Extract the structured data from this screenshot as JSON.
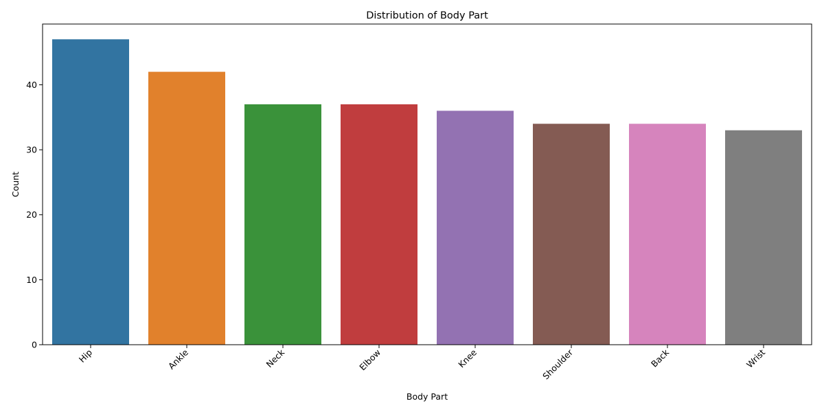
{
  "chart_data": {
    "type": "bar",
    "title": "Distribution of Body Part",
    "xlabel": "Body Part",
    "ylabel": "Count",
    "categories": [
      "Hip",
      "Ankle",
      "Neck",
      "Elbow",
      "Knee",
      "Shoulder",
      "Back",
      "Wrist"
    ],
    "values": [
      47,
      42,
      37,
      37,
      36,
      34,
      34,
      33
    ],
    "colors": [
      "#3274a1",
      "#e1812c",
      "#3a923a",
      "#c03d3e",
      "#9372b2",
      "#845b53",
      "#d684bd",
      "#7f7f7f"
    ],
    "ylim": [
      0,
      49.35
    ],
    "yticks": [
      0,
      10,
      20,
      30,
      40
    ],
    "grid": false,
    "legend": "none",
    "xtick_rotation": -45
  }
}
